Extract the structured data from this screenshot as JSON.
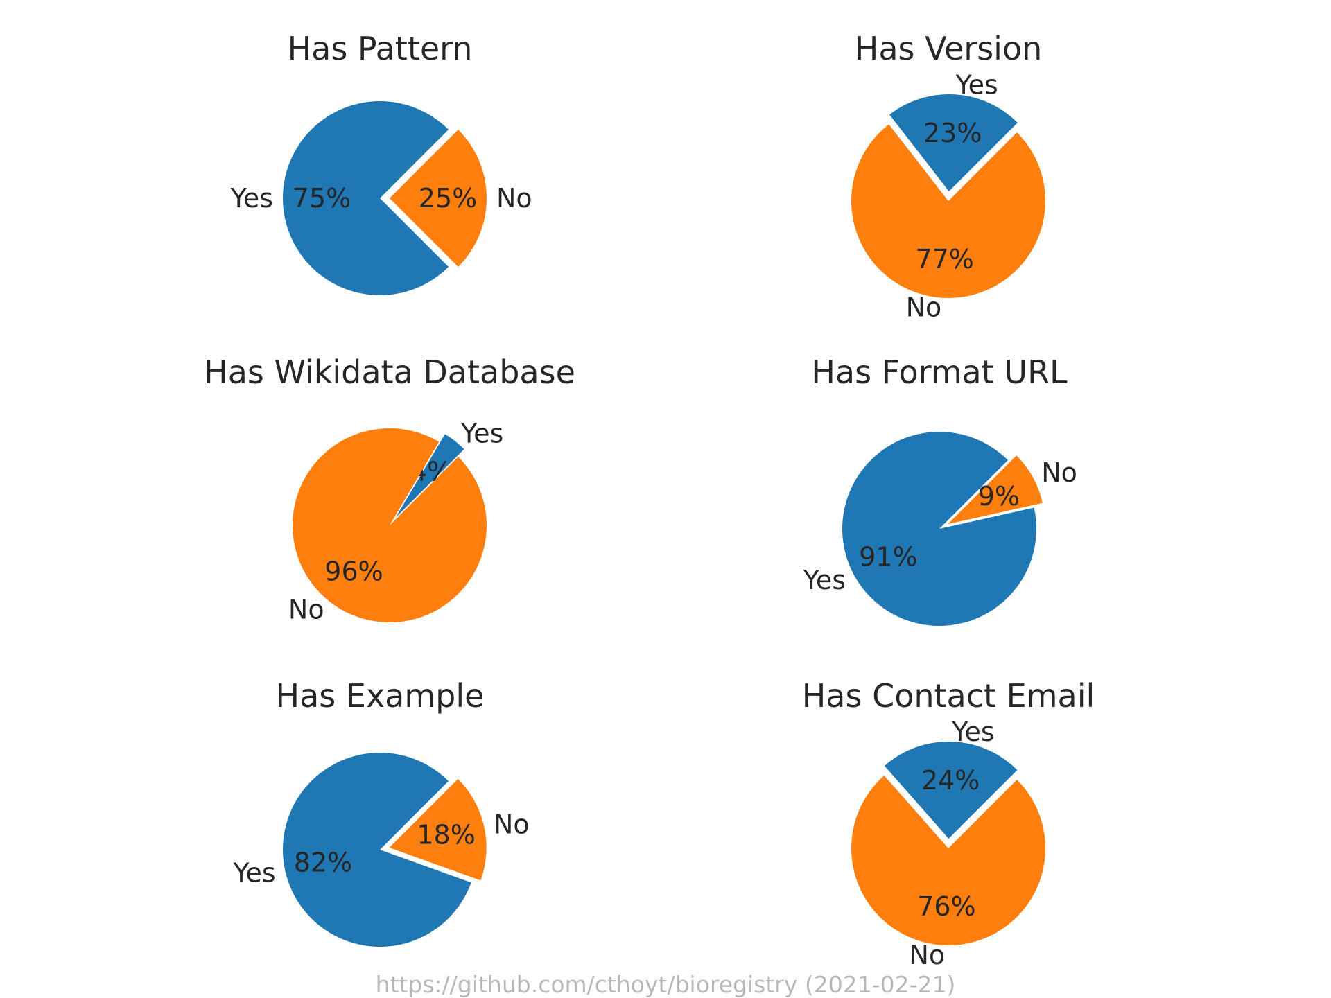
{
  "chart_data": [
    {
      "type": "pie",
      "title": "Has Pattern",
      "slices": [
        {
          "label": "Yes",
          "value": 75,
          "pct_text": "75%",
          "color": "#1f77b4",
          "exploded": false
        },
        {
          "label": "No",
          "value": 25,
          "pct_text": "25%",
          "color": "#ff7f0e",
          "exploded": true
        }
      ]
    },
    {
      "type": "pie",
      "title": "Has Version",
      "slices": [
        {
          "label": "Yes",
          "value": 23,
          "pct_text": "23%",
          "color": "#1f77b4",
          "exploded": true
        },
        {
          "label": "No",
          "value": 77,
          "pct_text": "77%",
          "color": "#ff7f0e",
          "exploded": false
        }
      ]
    },
    {
      "type": "pie",
      "title": "Has Wikidata Database",
      "slices": [
        {
          "label": "Yes",
          "value": 4,
          "pct_text": "4%",
          "color": "#1f77b4",
          "exploded": true
        },
        {
          "label": "No",
          "value": 96,
          "pct_text": "96%",
          "color": "#ff7f0e",
          "exploded": false
        }
      ]
    },
    {
      "type": "pie",
      "title": "Has Format URL",
      "slices": [
        {
          "label": "Yes",
          "value": 91,
          "pct_text": "91%",
          "color": "#1f77b4",
          "exploded": false
        },
        {
          "label": "No",
          "value": 9,
          "pct_text": "9%",
          "color": "#ff7f0e",
          "exploded": true
        }
      ]
    },
    {
      "type": "pie",
      "title": "Has Example",
      "slices": [
        {
          "label": "Yes",
          "value": 82,
          "pct_text": "82%",
          "color": "#1f77b4",
          "exploded": false
        },
        {
          "label": "No",
          "value": 18,
          "pct_text": "18%",
          "color": "#ff7f0e",
          "exploded": true
        }
      ]
    },
    {
      "type": "pie",
      "title": "Has Contact Email",
      "slices": [
        {
          "label": "Yes",
          "value": 24,
          "pct_text": "24%",
          "color": "#1f77b4",
          "exploded": true
        },
        {
          "label": "No",
          "value": 76,
          "pct_text": "76%",
          "color": "#ff7f0e",
          "exploded": false
        }
      ]
    }
  ],
  "footer": {
    "note": "https://github.com/cthoyt/bioregistry (2021-02-21)"
  }
}
